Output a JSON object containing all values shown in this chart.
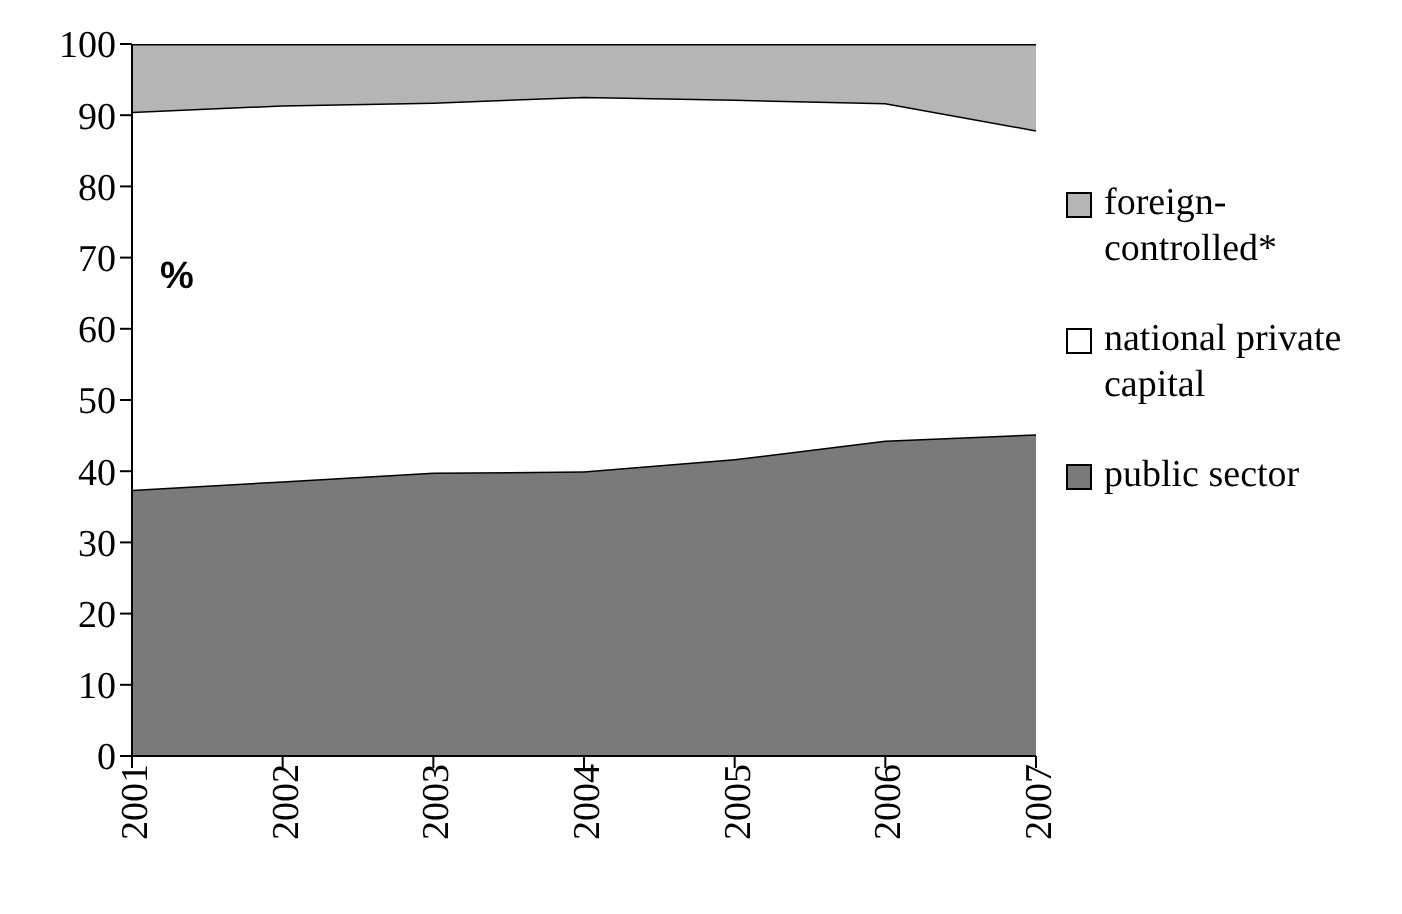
{
  "chart_data": {
    "type": "area",
    "stacked": true,
    "categories": [
      "2001",
      "2002",
      "2003",
      "2004",
      "2005",
      "2006",
      "2007"
    ],
    "series": [
      {
        "name": "public sector",
        "color": "#7a7a7a",
        "values": [
          37.4,
          38.6,
          39.8,
          40.0,
          41.7,
          44.3,
          45.2
        ]
      },
      {
        "name": "national private capital",
        "color": "#ffffff",
        "values": [
          53.1,
          52.8,
          52.0,
          52.6,
          50.5,
          47.4,
          42.7
        ]
      },
      {
        "name": "foreign-controlled*",
        "color": "#b5b5b5",
        "values": [
          9.5,
          8.6,
          8.2,
          7.4,
          7.8,
          8.3,
          12.1
        ]
      }
    ],
    "ylim": [
      0,
      100
    ],
    "yticks": [
      0,
      10,
      20,
      30,
      40,
      50,
      60,
      70,
      80,
      90,
      100
    ],
    "legend": "right",
    "annotations": [
      "%"
    ]
  }
}
